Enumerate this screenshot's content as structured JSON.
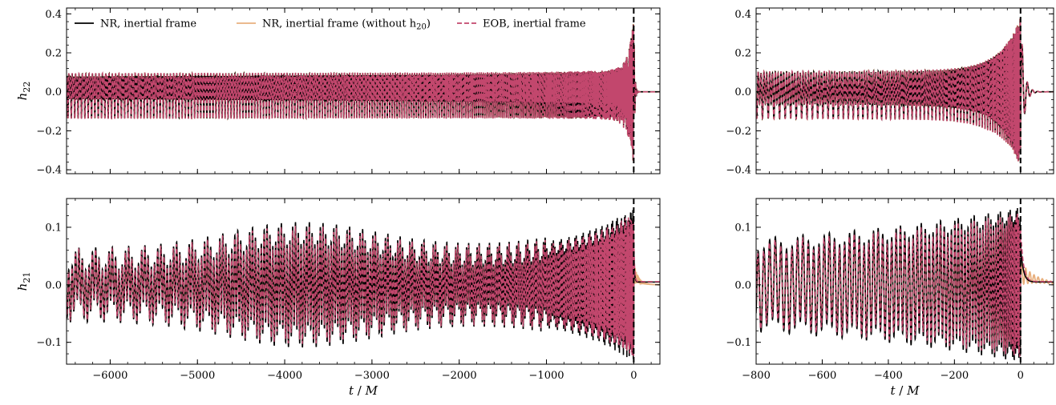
{
  "figure": {
    "legend": {
      "entries": [
        {
          "label": "NR, inertial frame",
          "label_suffix": "",
          "color": "#000000",
          "dash": "solid"
        },
        {
          "label": "NR, inertial frame (without h",
          "label_sub": "20",
          "label_suffix": ")",
          "color": "#E8B07E",
          "dash": "solid"
        },
        {
          "label": "EOB, inertial frame",
          "label_suffix": "",
          "color": "#C2476D",
          "dash": "dashed"
        }
      ]
    },
    "colors": {
      "nr": "#000000",
      "nr_wo": "#E8B07E",
      "eob": "#C2476D",
      "merger_line": "#000000"
    }
  },
  "chart_data": [
    {
      "type": "line",
      "panel": "top-left",
      "ylabel_main": "h",
      "ylabel_sub": "22",
      "xlabel": "",
      "xlim": [
        -6500,
        300
      ],
      "ylim": [
        -0.42,
        0.43
      ],
      "xticks": [
        -6000,
        -5000,
        -4000,
        -3000,
        -2000,
        -1000,
        0
      ],
      "xtick_labels": [],
      "yticks": [
        -0.4,
        -0.2,
        0.0,
        0.2,
        0.4
      ],
      "ytick_labels": [
        "−0.4",
        "−0.2",
        "0.0",
        "0.2",
        "0.4"
      ],
      "merger_marker_x": 0,
      "series": [
        {
          "key": "nr"
        },
        {
          "key": "nr_wo"
        },
        {
          "key": "eob"
        }
      ],
      "envelope": {
        "upper": [
          [
            -6500,
            0.08
          ],
          [
            -6000,
            0.075
          ],
          [
            -4000,
            0.08
          ],
          [
            -2000,
            0.09
          ],
          [
            -500,
            0.13
          ],
          [
            -100,
            0.2
          ],
          [
            0,
            0.4
          ]
        ],
        "lower": [
          [
            -6500,
            -0.14
          ],
          [
            -4000,
            -0.13
          ],
          [
            -2000,
            -0.12
          ],
          [
            -500,
            -0.15
          ],
          [
            0,
            -0.38
          ]
        ]
      }
    },
    {
      "type": "line",
      "panel": "top-right",
      "ylabel_main": "",
      "ylabel_sub": "",
      "xlabel": "",
      "xlim": [
        -800,
        100
      ],
      "ylim": [
        -0.42,
        0.43
      ],
      "xticks": [
        -800,
        -600,
        -400,
        -200,
        0
      ],
      "xtick_labels": [],
      "yticks": [
        -0.4,
        -0.2,
        0.0,
        0.2,
        0.4
      ],
      "ytick_labels": [
        "−0.4",
        "−0.2",
        "0.0",
        "0.2",
        "0.4"
      ],
      "merger_marker_x": 0,
      "series": [
        {
          "key": "nr"
        },
        {
          "key": "nr_wo"
        },
        {
          "key": "eob"
        }
      ],
      "envelope": {
        "upper": [
          [
            -800,
            0.14
          ],
          [
            -600,
            0.16
          ],
          [
            -400,
            0.13
          ],
          [
            -200,
            0.18
          ],
          [
            -50,
            0.25
          ],
          [
            0,
            0.39
          ]
        ],
        "lower": [
          [
            -800,
            -0.13
          ],
          [
            -600,
            -0.16
          ],
          [
            -400,
            -0.16
          ],
          [
            -100,
            -0.24
          ],
          [
            0,
            -0.37
          ]
        ]
      }
    },
    {
      "type": "line",
      "panel": "bottom-left",
      "ylabel_main": "h",
      "ylabel_sub": "21",
      "xlabel_main": "t",
      "xlabel_sep": " / ",
      "xlabel_unit": "M",
      "xlim": [
        -6500,
        300
      ],
      "ylim": [
        -0.138,
        0.15
      ],
      "xticks": [
        -6000,
        -5000,
        -4000,
        -3000,
        -2000,
        -1000,
        0
      ],
      "xtick_labels": [
        "−6000",
        "−5000",
        "−4000",
        "−3000",
        "−2000",
        "−1000",
        "0"
      ],
      "yticks": [
        -0.1,
        0.0,
        0.1
      ],
      "ytick_labels": [
        "−0.1",
        "0.0",
        "0.1"
      ],
      "merger_marker_x": 0,
      "series": [
        {
          "key": "nr"
        },
        {
          "key": "nr_wo"
        },
        {
          "key": "eob"
        }
      ]
    },
    {
      "type": "line",
      "panel": "bottom-right",
      "ylabel_main": "",
      "ylabel_sub": "",
      "xlabel_main": "t",
      "xlabel_sep": " / ",
      "xlabel_unit": "M",
      "xlim": [
        -800,
        100
      ],
      "ylim": [
        -0.138,
        0.15
      ],
      "xticks": [
        -800,
        -600,
        -400,
        -200,
        0
      ],
      "xtick_labels": [
        "−800",
        "−600",
        "−400",
        "−200",
        "0"
      ],
      "yticks": [
        -0.1,
        0.0,
        0.1
      ],
      "ytick_labels": [
        "−0.1",
        "0.0",
        "0.1"
      ],
      "merger_marker_x": 0,
      "series": [
        {
          "key": "nr"
        },
        {
          "key": "nr_wo"
        },
        {
          "key": "eob"
        }
      ]
    }
  ]
}
